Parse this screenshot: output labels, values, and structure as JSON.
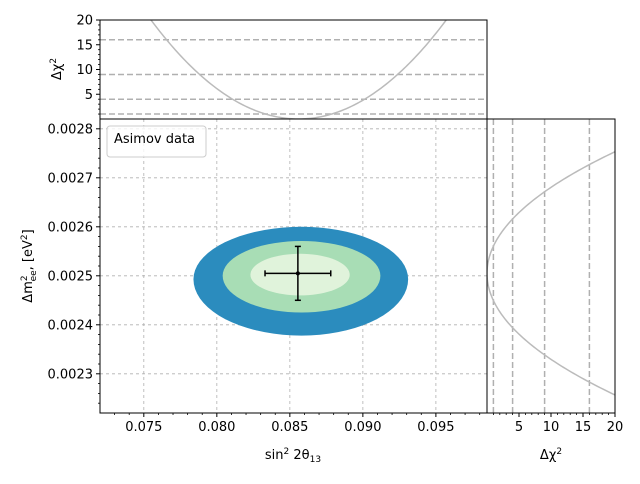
{
  "chart_data": [
    {
      "panel": "main",
      "type": "contour",
      "xlabel_html": "sin² 2θ₁₃",
      "ylabel_html": "Δm²_ee, [eV²]",
      "xlabel": {
        "main": "sin",
        "sup": "2",
        "mid": " 2θ",
        "sub": "13"
      },
      "ylabel": {
        "pre": "Δm",
        "sup": "2",
        "sub": "ee",
        "post": ", [eV",
        "sup2": "2",
        "end": "]"
      },
      "xlim": [
        0.072,
        0.0985
      ],
      "ylim": [
        0.00222,
        0.00282
      ],
      "xticks": [
        0.075,
        0.08,
        0.085,
        0.09,
        0.095
      ],
      "xtick_labels": [
        "0.075",
        "0.080",
        "0.085",
        "0.090",
        "0.095"
      ],
      "yticks": [
        0.0023,
        0.0024,
        0.0025,
        0.0026,
        0.0027,
        0.0028
      ],
      "ytick_labels": [
        "0.0023",
        "0.0024",
        "0.0025",
        "0.0026",
        "0.0027",
        "0.0028"
      ],
      "grid": true,
      "legend": {
        "text": "Asimov data",
        "placement": "top-left"
      },
      "contours": [
        {
          "level": "outer",
          "color": "#2b8cbe",
          "cx": 0.0858,
          "cy": 0.002493,
          "rx_left": 0.0074,
          "rx_right": 0.0073,
          "ry_top": 0.000107,
          "ry_bottom": 0.000115
        },
        {
          "level": "middle",
          "color": "#a8ddb5",
          "cx": 0.0858,
          "cy": 0.0025,
          "rx_left": 0.0054,
          "rx_right": 0.0054,
          "ry_top": 7.1e-05,
          "ry_bottom": 7.5e-05
        },
        {
          "level": "inner",
          "color": "#e0f3db",
          "cx": 0.0857,
          "cy": 0.002502,
          "rx_left": 0.0034,
          "rx_right": 0.0034,
          "ry_top": 4.3e-05,
          "ry_bottom": 4.2e-05
        }
      ],
      "best_fit": {
        "x": 0.08555,
        "y": 0.002505,
        "xerr_low": 0.00225,
        "xerr_high": 0.00225,
        "yerr_low": 5.5e-05,
        "yerr_high": 5.5e-05
      }
    },
    {
      "panel": "top",
      "type": "line",
      "ylabel": {
        "pre": "Δχ",
        "sup": "2"
      },
      "xlim": [
        0.072,
        0.0985
      ],
      "ylim": [
        0,
        20
      ],
      "yticks": [
        5,
        10,
        15,
        20
      ],
      "ytick_labels": [
        "5",
        "10",
        "15",
        "20"
      ],
      "reference_levels": [
        1,
        4,
        9,
        16
      ],
      "curve": {
        "center": 0.0856,
        "sigma": 0.00226,
        "color": "#bbbbbb"
      }
    },
    {
      "panel": "right",
      "type": "line",
      "xlabel": {
        "pre": "Δχ",
        "sup": "2"
      },
      "xlim": [
        0,
        20
      ],
      "ylim": [
        0.00222,
        0.00282
      ],
      "xticks": [
        5,
        10,
        15,
        20
      ],
      "xtick_labels": [
        "5",
        "10",
        "15",
        "20"
      ],
      "reference_levels": [
        1,
        4,
        9,
        16
      ],
      "curve": {
        "center": 0.002505,
        "sigma": 5.55e-05,
        "color": "#bbbbbb"
      }
    }
  ]
}
